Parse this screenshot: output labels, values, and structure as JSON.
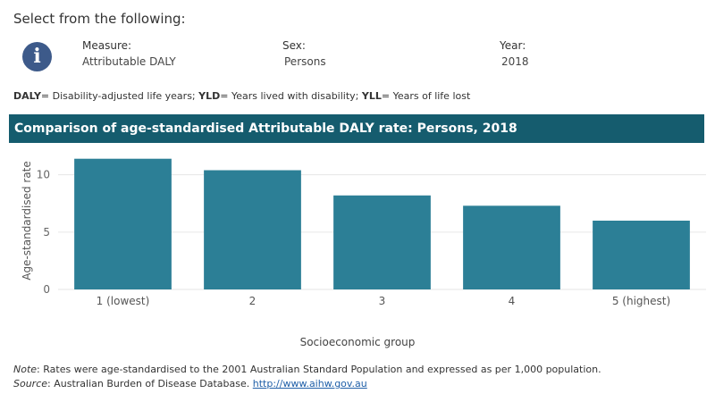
{
  "heading": "Select from the following:",
  "icons": {
    "info": "info-icon"
  },
  "filters": [
    {
      "label": "Measure:",
      "value": "Attributable DALY"
    },
    {
      "label": "Sex:",
      "value": "Persons"
    },
    {
      "label": "Year:",
      "value": "2018"
    }
  ],
  "definitions": [
    {
      "abbr": "DALY",
      "text": "= Disability-adjusted life years; "
    },
    {
      "abbr": "YLD",
      "text": "= Years lived with disability; "
    },
    {
      "abbr": "YLL",
      "text": "= Years of life lost"
    }
  ],
  "colors": {
    "title_bar": "#155c6e",
    "bar": "#2c7f96",
    "grid": "#e6e6e6"
  },
  "chart_data": {
    "type": "bar",
    "title": "Comparison of age-standardised Attributable DALY rate:  Persons, 2018",
    "xlabel": "Socioeconomic group",
    "ylabel": "Age-standardised rate",
    "categories": [
      "1 (lowest)",
      "2",
      "3",
      "4",
      "5 (highest)"
    ],
    "values": [
      11.4,
      10.4,
      8.2,
      7.3,
      6.0
    ],
    "ylim": [
      0,
      12
    ],
    "yticks": [
      0,
      5,
      10
    ],
    "grid": true,
    "legend": "none"
  },
  "notes": {
    "note_label": "Note",
    "note_text": ": Rates were age-standardised to the 2001 Australian Standard Population and expressed as per 1,000 population.",
    "source_label": "Source",
    "source_text": ": Australian Burden of Disease Database. ",
    "source_link": "http://www.aihw.gov.au"
  }
}
